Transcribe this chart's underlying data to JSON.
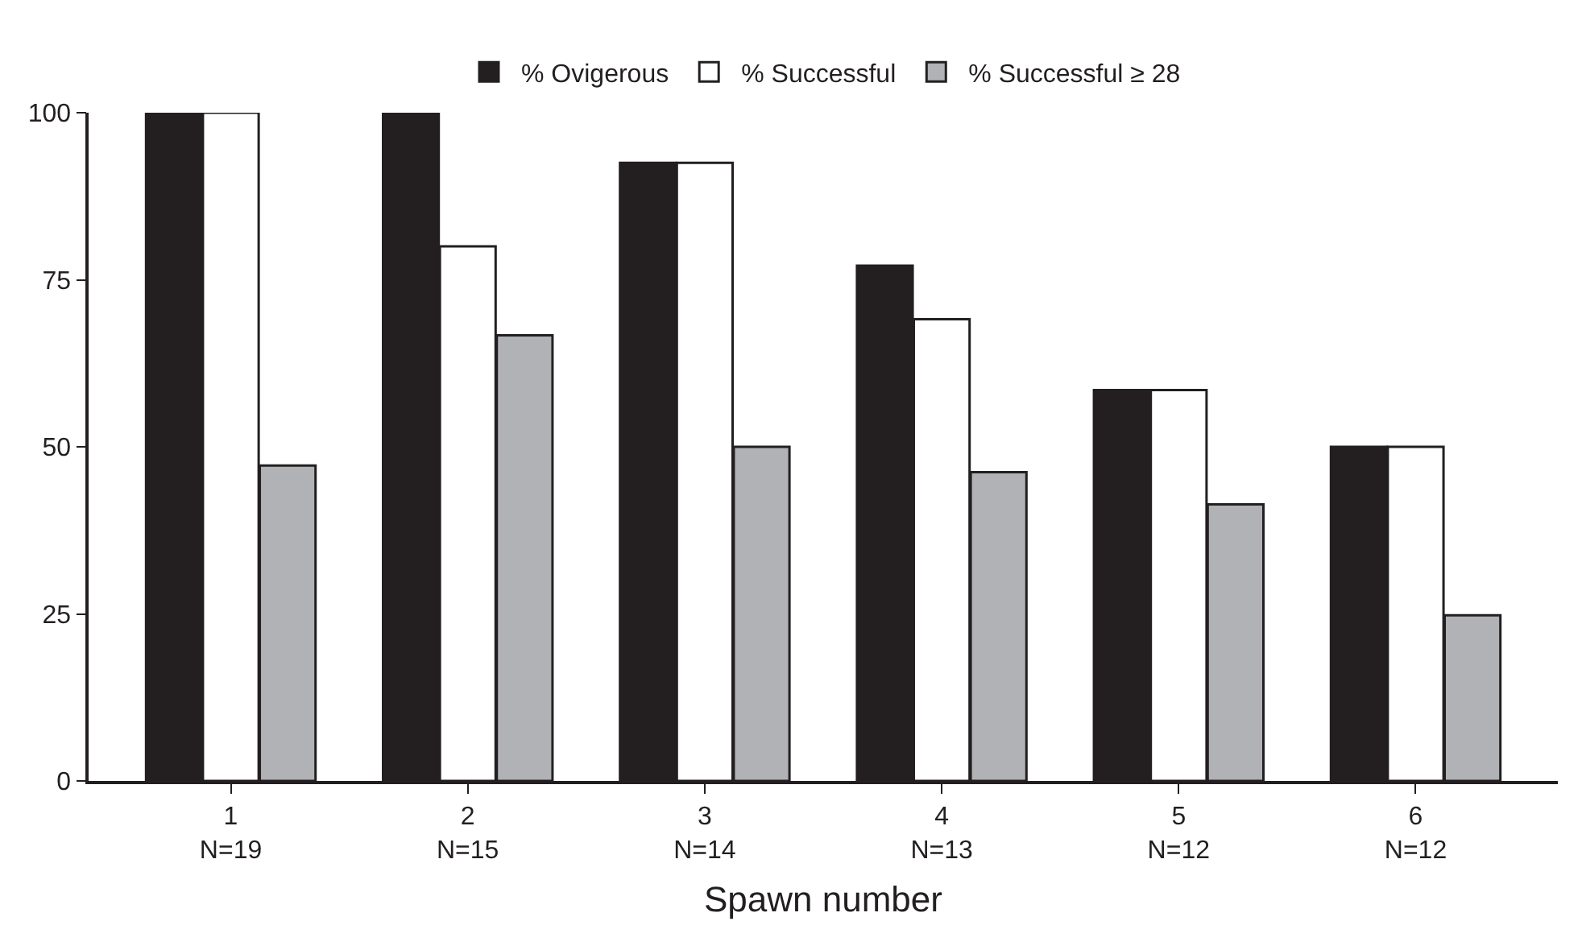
{
  "chart_data": {
    "type": "bar",
    "xlabel": "Spawn number",
    "categories": [
      "1\nN=19",
      "2\nN=15",
      "3\nN=14",
      "4\nN=13",
      "5\nN=12",
      "6\nN=12"
    ],
    "series": [
      {
        "name": "% Ovigerous",
        "color": "#231f20",
        "values": [
          100,
          100,
          92.5,
          77.1,
          58.5,
          50
        ]
      },
      {
        "name": "% Successful",
        "color": "#ffffff",
        "values": [
          100,
          80,
          92.5,
          69.1,
          58.5,
          50
        ]
      },
      {
        "name": "% Successful ≥ 28",
        "color": "#b1b2b5",
        "values": [
          47.2,
          66.7,
          50,
          46.2,
          41.4,
          24.8
        ]
      }
    ],
    "ylim": [
      0,
      100
    ],
    "yticks": [
      0,
      25,
      50,
      75,
      100
    ],
    "legend": "top"
  }
}
